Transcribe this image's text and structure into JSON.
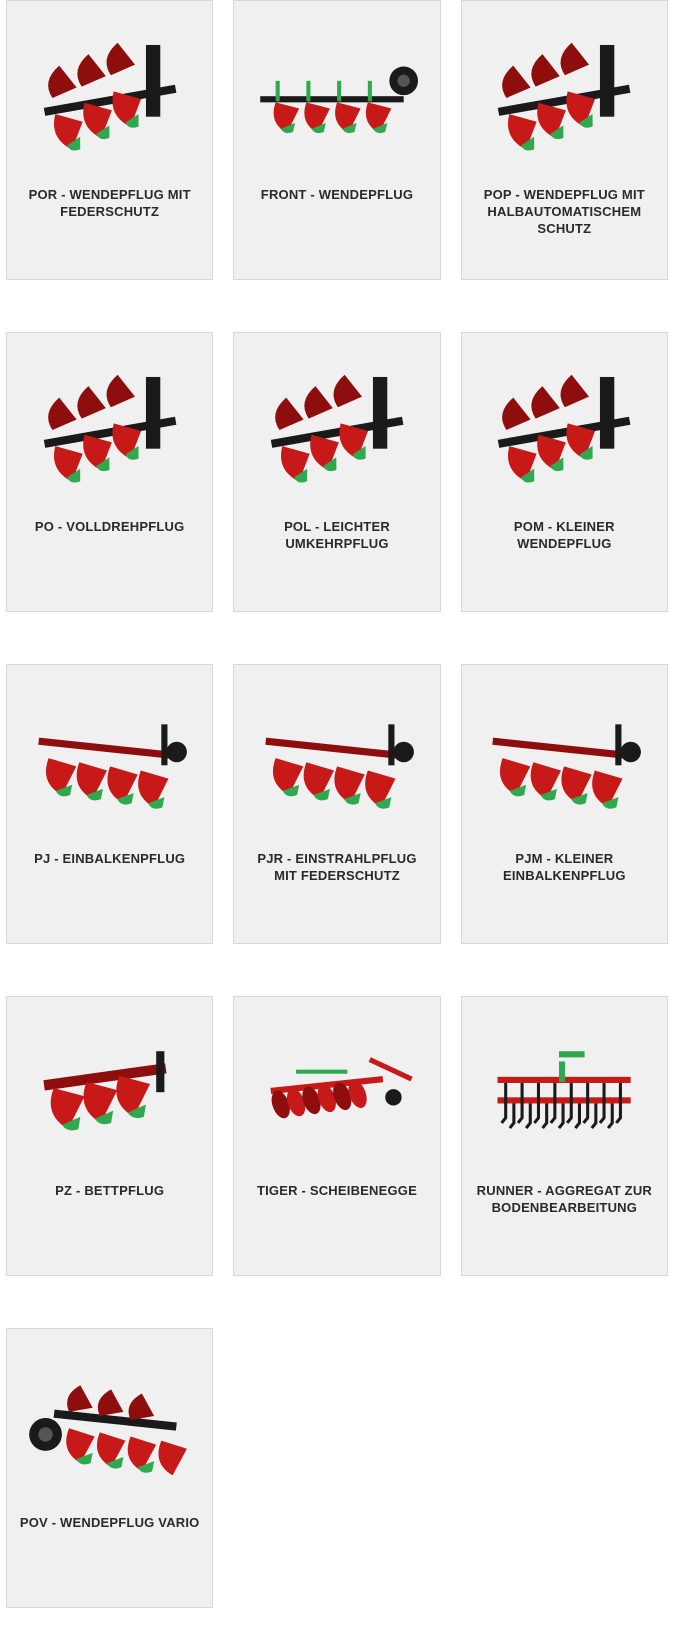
{
  "colors": {
    "card_bg": "#f0f0f0",
    "card_border": "#d8d8d8",
    "text": "#2a2a2a",
    "machine_red": "#c81919",
    "machine_red_dark": "#8e0e0e",
    "machine_green": "#2fa84f",
    "machine_black": "#1a1a1a"
  },
  "products": [
    {
      "title": "POR - WENDEPFLUG MIT FEDERSCHUTZ",
      "icon": "plow-reversible"
    },
    {
      "title": "FRONT - WENDEPFLUG",
      "icon": "plow-front"
    },
    {
      "title": "POP - WENDEPFLUG MIT HALBAUTOMATISCHEM SCHUTZ",
      "icon": "plow-reversible"
    },
    {
      "title": "PO - VOLLDREHPFLUG",
      "icon": "plow-reversible"
    },
    {
      "title": "POL - LEICHTER UMKEHRPFLUG",
      "icon": "plow-reversible"
    },
    {
      "title": "POM - KLEINER WENDEPFLUG",
      "icon": "plow-reversible"
    },
    {
      "title": "PJ - EINBALKENPFLUG",
      "icon": "plow-single"
    },
    {
      "title": "PJR - EINSTRAHLPFLUG MIT FEDERSCHUTZ",
      "icon": "plow-single"
    },
    {
      "title": "PJM - KLEINER EINBALKENPFLUG",
      "icon": "plow-single"
    },
    {
      "title": "PZ - BETTPFLUG",
      "icon": "plow-bed"
    },
    {
      "title": "TIGER - SCHEIBENEGGE",
      "icon": "disc-harrow"
    },
    {
      "title": "RUNNER - AGGREGAT ZUR BODENBEARBEITUNG",
      "icon": "cultivator"
    },
    {
      "title": "POV - WENDEPFLUG VARIO",
      "icon": "plow-vario"
    }
  ]
}
